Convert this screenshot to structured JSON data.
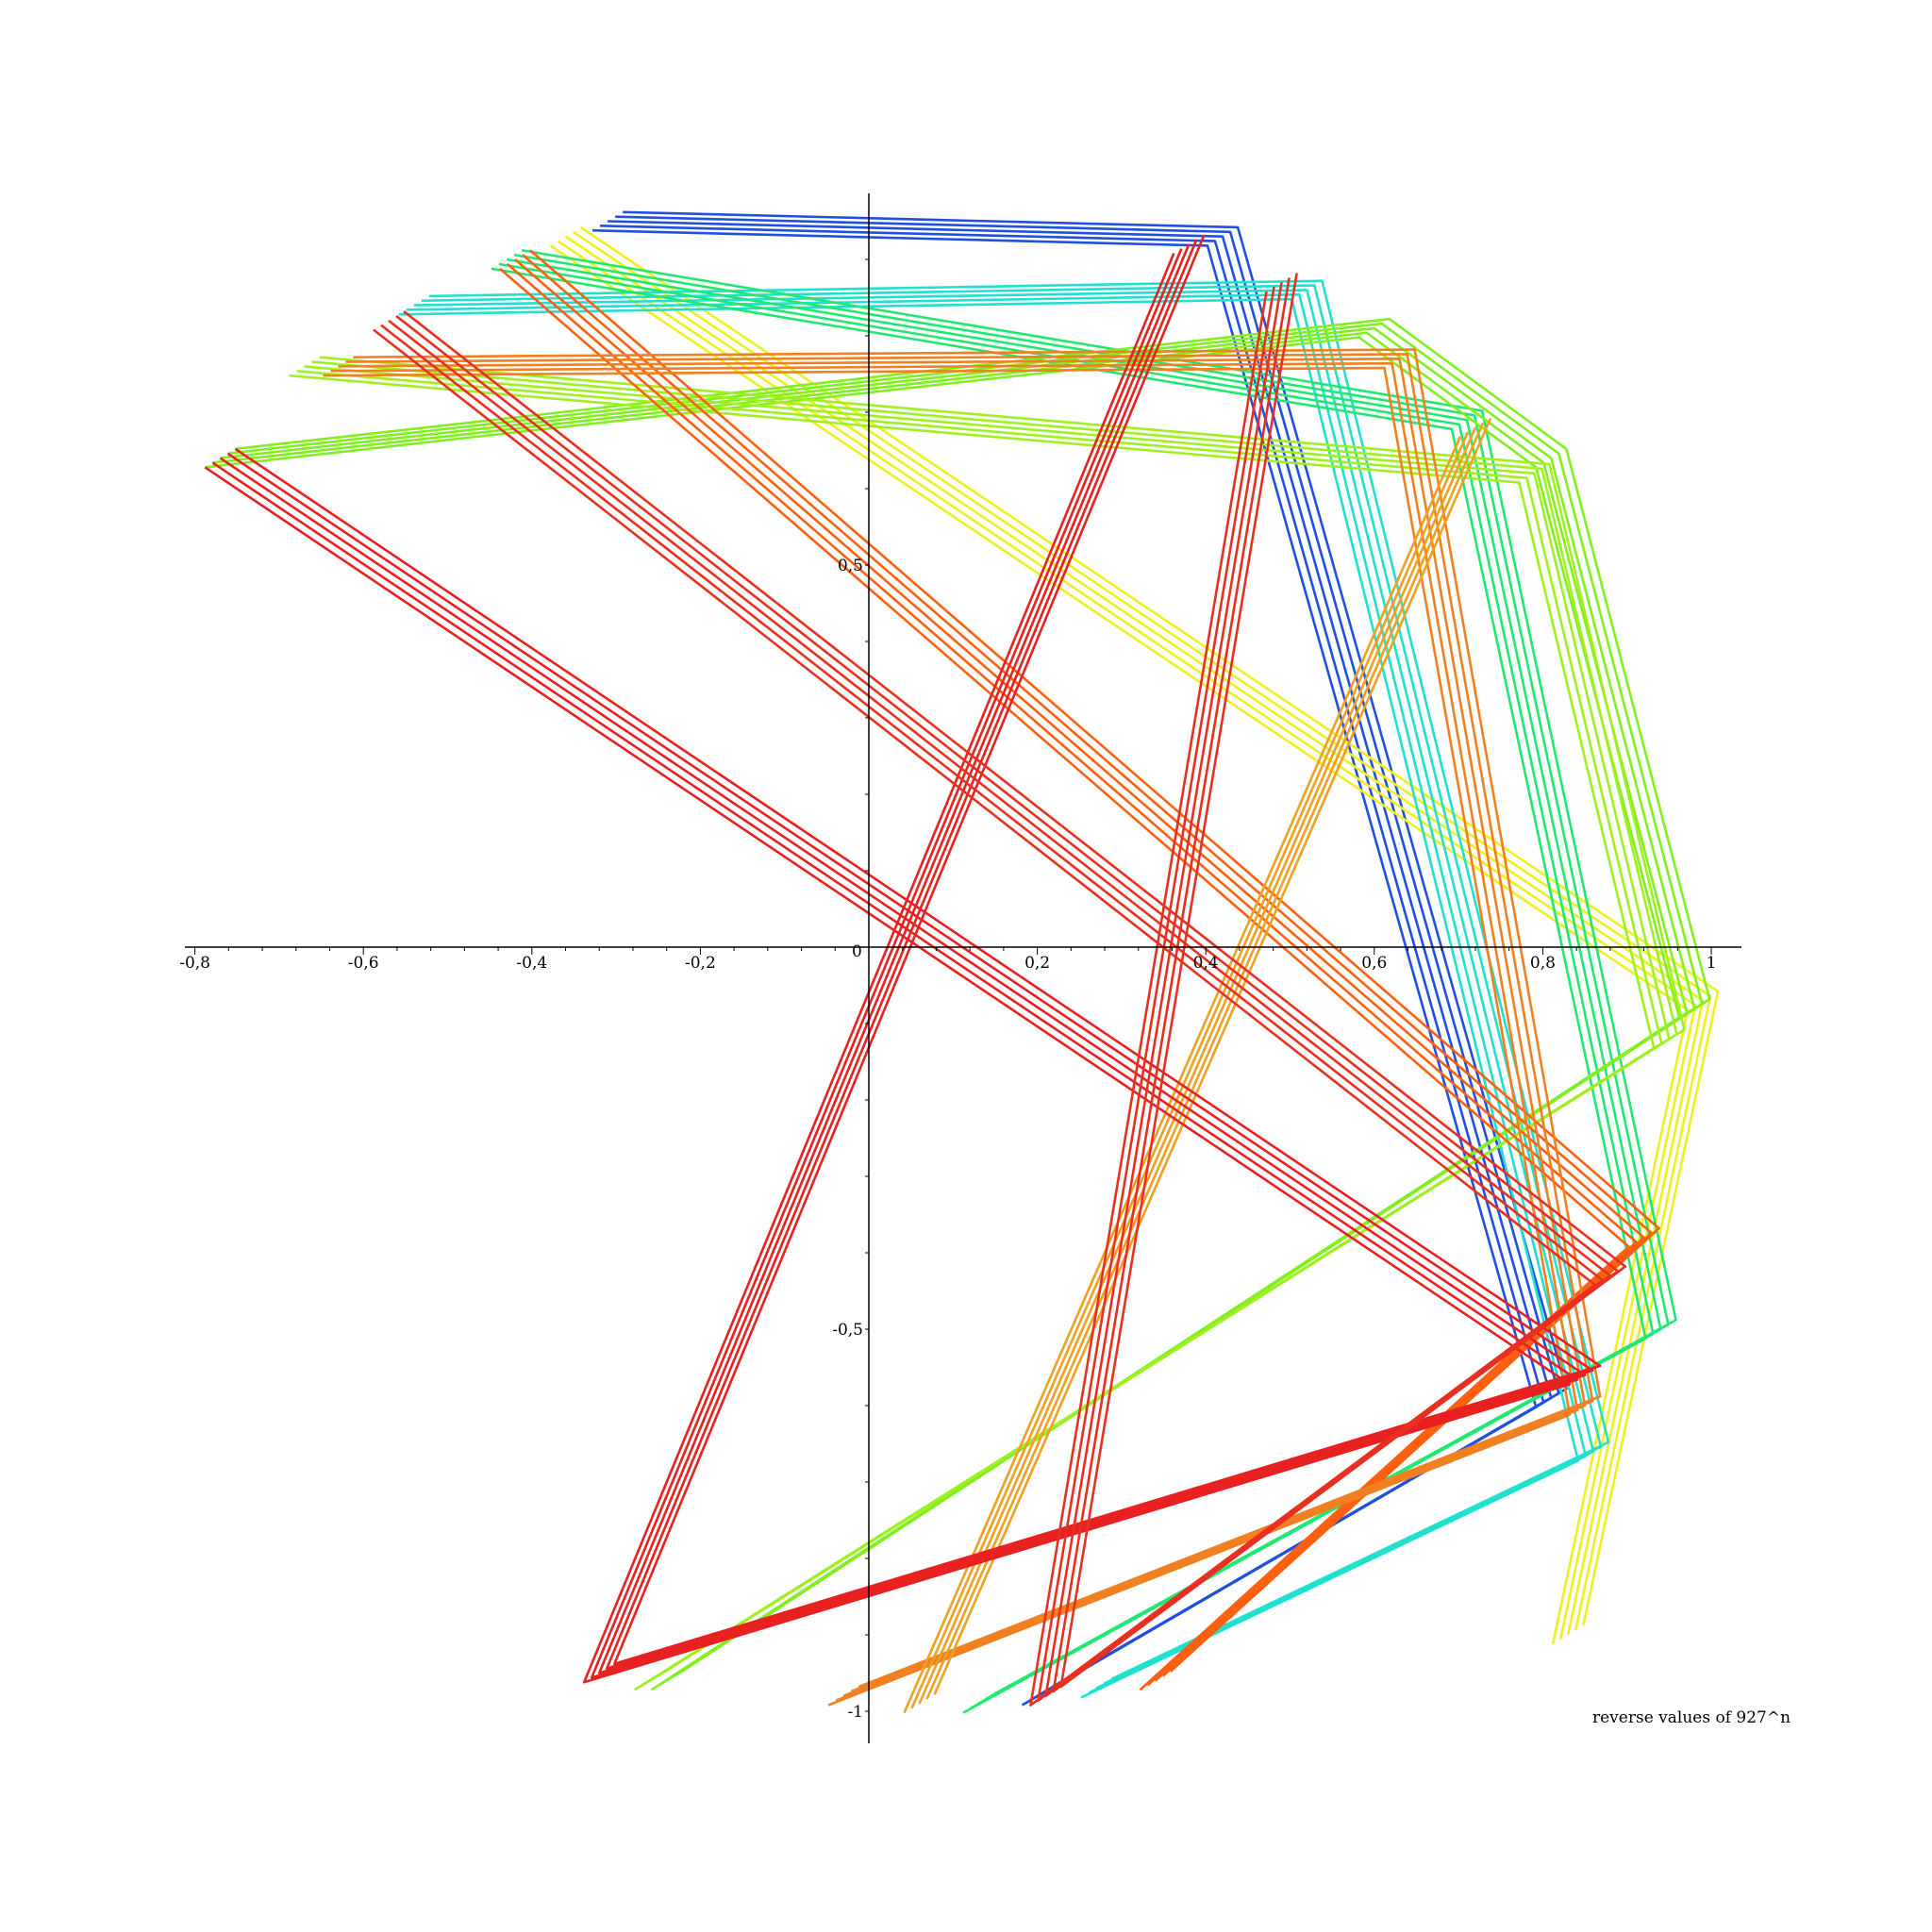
{
  "chart_data": {
    "type": "line",
    "title": "reverse values of 927^n",
    "xlim": [
      -0.8,
      1.0
    ],
    "ylim": [
      -1.0,
      1.0
    ],
    "grid": false,
    "x_ticks": [
      {
        "value": -0.8,
        "label": "-0,8"
      },
      {
        "value": -0.6,
        "label": "-0,6"
      },
      {
        "value": -0.4,
        "label": "-0,4"
      },
      {
        "value": -0.2,
        "label": "-0,2"
      },
      {
        "value": 0.2,
        "label": "0,2"
      },
      {
        "value": 0.4,
        "label": "0,4"
      },
      {
        "value": 0.6,
        "label": "0,6"
      },
      {
        "value": 0.8,
        "label": "0,8"
      },
      {
        "value": 1.0,
        "label": "1"
      }
    ],
    "y_ticks": [
      {
        "value": 0.5,
        "label": "0,5"
      },
      {
        "value": -0.5,
        "label": "-0,5"
      },
      {
        "value": -1.0,
        "label": "-1"
      }
    ],
    "origin_label": "0",
    "series": [
      {
        "color": "#2050e0",
        "points": [
          [
            -0.31,
            0.95
          ],
          [
            0.42,
            0.93
          ],
          [
            0.81,
            -0.59
          ],
          [
            0.2,
            -0.98
          ]
        ]
      },
      {
        "color": "#f0f020",
        "points": [
          [
            -0.36,
            0.93
          ],
          [
            0.99,
            -0.07
          ],
          [
            0.83,
            -0.9
          ]
        ]
      },
      {
        "color": "#20e0d0",
        "points": [
          [
            -0.54,
            0.84
          ],
          [
            0.52,
            0.86
          ],
          [
            0.86,
            -0.66
          ],
          [
            0.27,
            -0.97
          ]
        ]
      },
      {
        "color": "#20e870",
        "points": [
          [
            -0.43,
            0.9
          ],
          [
            0.71,
            0.69
          ],
          [
            0.94,
            -0.5
          ],
          [
            0.13,
            -0.99
          ]
        ]
      },
      {
        "color": "#80f020",
        "points": [
          [
            -0.77,
            0.64
          ],
          [
            0.6,
            0.81
          ],
          [
            0.81,
            0.64
          ],
          [
            0.98,
            -0.08
          ],
          [
            -0.24,
            -0.96
          ]
        ]
      },
      {
        "color": "#a0f020",
        "points": [
          [
            -0.67,
            0.76
          ],
          [
            0.79,
            0.62
          ],
          [
            0.95,
            -0.12
          ],
          [
            -0.26,
            -0.96
          ]
        ]
      },
      {
        "color": "#ff6010",
        "points": [
          [
            -0.42,
            0.9
          ],
          [
            0.92,
            -0.38
          ],
          [
            0.34,
            -0.96
          ]
        ]
      },
      {
        "color": "#f08020",
        "points": [
          [
            -0.63,
            0.76
          ],
          [
            0.63,
            0.77
          ],
          [
            0.85,
            -0.6
          ],
          [
            -0.03,
            -0.98
          ]
        ]
      },
      {
        "color": "#f0a020",
        "points": [
          [
            0.72,
            0.68
          ],
          [
            0.06,
            -0.99
          ]
        ]
      },
      {
        "color": "#e82020",
        "points": [
          [
            -0.77,
            0.64
          ],
          [
            0.85,
            -0.56
          ],
          [
            -0.32,
            -0.95
          ],
          [
            0.38,
            0.92
          ]
        ]
      },
      {
        "color": "#e83020",
        "points": [
          [
            -0.57,
            0.82
          ],
          [
            0.88,
            -0.43
          ],
          [
            0.21,
            -0.98
          ],
          [
            0.49,
            0.87
          ]
        ]
      }
    ]
  }
}
